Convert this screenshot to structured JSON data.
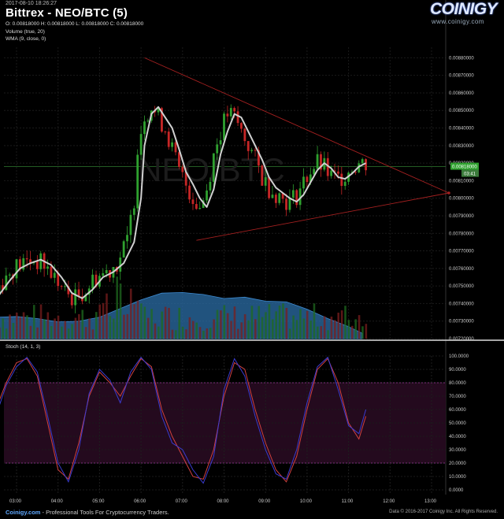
{
  "header": {
    "timestamp": "2017-08-10 18:26:27",
    "title": "Bittrex - NEO/BTC (5)",
    "ohlc": "O: 0.00818000 H: 0.00818000 L: 0.00818000 C: 0.00818000",
    "indicator_volume": "Volume (true, 20)",
    "indicator_wma": "WMA (9, close, 0)"
  },
  "logo": {
    "name": "COINIGY",
    "url": "www.coinigy.com"
  },
  "watermark": "NEO/BTC",
  "stoch_label": "Stoch (14, 1, 3)",
  "footer": {
    "brand": "Coinigy.com",
    "tagline": " - Professional Tools For Cryptocurrency Traders.",
    "copyright": "Data © 2016-2017 Coinigy Inc. All Rights Reserved."
  },
  "colors": {
    "up": "#2fa12f",
    "down": "#c62626",
    "wma": "#d0d0d0",
    "volume_area": "#2c6fa8",
    "trendline": "#a52020",
    "stoch_bg": "#240a1e",
    "stoch_k": "#d04040",
    "stoch_d": "#3b3bd0",
    "price_badge": "#2fa12f"
  },
  "chart_data": [
    {
      "type": "candlestick",
      "title": "Bittrex - NEO/BTC (5)",
      "y_ticks": [
        "0.00880000",
        "0.00870000",
        "0.00860000",
        "0.00850000",
        "0.00840000",
        "0.00830000",
        "0.00820000",
        "0.00810000",
        "0.00800000",
        "0.00790000",
        "0.00780000",
        "0.00770000",
        "0.00760000",
        "0.00750000",
        "0.00740000",
        "0.00730000",
        "0.00720000"
      ],
      "ylim": [
        0.00718,
        0.00888
      ],
      "x_ticks": [
        "03:00",
        "04:00",
        "05:00",
        "06:00",
        "07:00",
        "08:00",
        "09:00",
        "10:00",
        "11:00",
        "12:00",
        "13:00"
      ],
      "current_price": "0.00818000",
      "current_price_value": 0.00818,
      "badge_subtext": "03:41",
      "series": [
        {
          "name": "WMA (9, close, 0)",
          "x": [
            "02:35",
            "02:50",
            "03:05",
            "03:20",
            "03:35",
            "03:50",
            "04:05",
            "04:20",
            "04:35",
            "04:50",
            "05:05",
            "05:20",
            "05:35",
            "05:50",
            "06:00",
            "06:05",
            "06:15",
            "06:25",
            "06:35",
            "06:45",
            "06:55",
            "07:05",
            "07:15",
            "07:25",
            "07:35",
            "07:45",
            "07:55",
            "08:05",
            "08:15",
            "08:25",
            "08:35",
            "08:45",
            "08:55",
            "09:05",
            "09:15",
            "09:25",
            "09:35",
            "09:45",
            "09:55",
            "10:05",
            "10:15",
            "10:25",
            "10:35",
            "10:45",
            "10:55",
            "11:05",
            "11:15",
            "11:25"
          ],
          "values": [
            0.00745,
            0.00753,
            0.0076,
            0.00763,
            0.00765,
            0.00762,
            0.00755,
            0.00746,
            0.00743,
            0.00748,
            0.00755,
            0.00758,
            0.00763,
            0.00775,
            0.008,
            0.0083,
            0.00848,
            0.00852,
            0.00846,
            0.0084,
            0.00828,
            0.00815,
            0.00808,
            0.008,
            0.00795,
            0.00805,
            0.00825,
            0.00838,
            0.00848,
            0.00846,
            0.00838,
            0.0083,
            0.00822,
            0.00812,
            0.00806,
            0.00803,
            0.008,
            0.00798,
            0.00802,
            0.00809,
            0.00816,
            0.0082,
            0.00817,
            0.00812,
            0.00811,
            0.00814,
            0.00818,
            0.0082
          ]
        }
      ],
      "trendlines": [
        {
          "name": "upper",
          "from": [
            "06:05",
            0.0088
          ],
          "to": [
            "13:25",
            0.00803
          ]
        },
        {
          "name": "lower",
          "from": [
            "07:20",
            0.00776
          ],
          "to": [
            "13:25",
            0.00803
          ]
        }
      ]
    },
    {
      "type": "area",
      "title": "Volume (true, 20)",
      "x": [
        "02:30",
        "03:00",
        "03:30",
        "04:00",
        "04:30",
        "05:00",
        "05:30",
        "06:00",
        "06:30",
        "07:00",
        "07:30",
        "08:00",
        "08:30",
        "09:00",
        "09:30",
        "10:00",
        "10:30",
        "11:00",
        "11:20"
      ],
      "values": [
        0.32,
        0.33,
        0.3,
        0.25,
        0.26,
        0.32,
        0.45,
        0.58,
        0.68,
        0.69,
        0.66,
        0.6,
        0.62,
        0.56,
        0.55,
        0.44,
        0.3,
        0.18,
        0.08
      ],
      "note_units": "relative"
    },
    {
      "type": "line",
      "title": "Stoch (14, 1, 3)",
      "y_ticks": [
        "100.0000",
        "90.0000",
        "80.0000",
        "70.0000",
        "60.0000",
        "50.0000",
        "40.0000",
        "30.0000",
        "20.0000",
        "10.0000",
        "0.0000"
      ],
      "ylim": [
        0,
        100
      ],
      "overbought": 80,
      "oversold": 20,
      "x_ticks": [
        "03:00",
        "04:00",
        "05:00",
        "06:00",
        "07:00",
        "08:00",
        "09:00",
        "10:00",
        "11:00",
        "12:00",
        "13:00"
      ],
      "series": [
        {
          "name": "K",
          "x": [
            "02:30",
            "02:45",
            "03:00",
            "03:15",
            "03:30",
            "03:45",
            "04:00",
            "04:15",
            "04:30",
            "04:45",
            "05:00",
            "05:15",
            "05:30",
            "05:45",
            "06:00",
            "06:15",
            "06:30",
            "06:45",
            "07:00",
            "07:15",
            "07:30",
            "07:45",
            "08:00",
            "08:15",
            "08:30",
            "08:45",
            "09:00",
            "09:15",
            "09:30",
            "09:45",
            "10:00",
            "10:15",
            "10:30",
            "10:45",
            "11:00",
            "11:15",
            "11:25"
          ],
          "values": [
            60,
            80,
            95,
            98,
            85,
            50,
            15,
            8,
            35,
            70,
            88,
            80,
            70,
            85,
            98,
            92,
            60,
            40,
            25,
            10,
            8,
            30,
            70,
            95,
            90,
            60,
            35,
            15,
            6,
            25,
            60,
            90,
            98,
            80,
            50,
            38,
            55
          ]
        },
        {
          "name": "D",
          "x": [
            "02:30",
            "02:45",
            "03:00",
            "03:15",
            "03:30",
            "03:45",
            "04:00",
            "04:15",
            "04:30",
            "04:45",
            "05:00",
            "05:15",
            "05:30",
            "05:45",
            "06:00",
            "06:15",
            "06:30",
            "06:45",
            "07:00",
            "07:15",
            "07:30",
            "07:45",
            "08:00",
            "08:15",
            "08:30",
            "08:45",
            "09:00",
            "09:15",
            "09:30",
            "09:45",
            "10:00",
            "10:15",
            "10:30",
            "10:45",
            "11:00",
            "11:15",
            "11:25"
          ],
          "values": [
            55,
            78,
            92,
            99,
            88,
            55,
            20,
            6,
            30,
            72,
            90,
            82,
            65,
            88,
            99,
            90,
            55,
            35,
            30,
            15,
            5,
            25,
            75,
            98,
            85,
            55,
            30,
            12,
            8,
            30,
            65,
            92,
            99,
            75,
            48,
            42,
            60
          ]
        }
      ]
    }
  ]
}
